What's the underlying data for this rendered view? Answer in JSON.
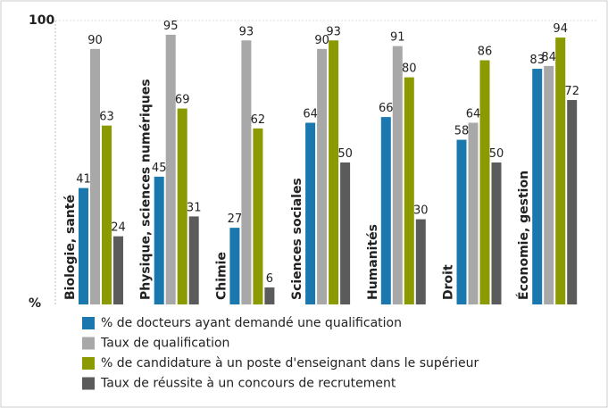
{
  "chart_data": {
    "type": "bar",
    "categories": [
      "Biologie, santé",
      "Physique, sciences numériques",
      "Chimie",
      "Sciences sociales",
      "Humanités",
      "Droit",
      "Économie, gestion"
    ],
    "series": [
      {
        "name": "% de docteurs ayant demandé une qualification",
        "color": "#1a78ae",
        "values": [
          41,
          45,
          27,
          64,
          66,
          58,
          83
        ]
      },
      {
        "name": "Taux de qualification",
        "color": "#a8a8a8",
        "values": [
          90,
          95,
          93,
          90,
          91,
          64,
          84
        ]
      },
      {
        "name": "% de candidature à un poste d'enseignant dans le supérieur",
        "color": "#8a9a00",
        "values": [
          63,
          69,
          62,
          93,
          80,
          86,
          94
        ]
      },
      {
        "name": "Taux de réussite à un concours de recrutement",
        "color": "#5b5b5b",
        "values": [
          24,
          31,
          6,
          50,
          30,
          50,
          72
        ]
      }
    ],
    "ylabel": "%",
    "ylim": [
      0,
      100
    ],
    "yticks": [
      100
    ],
    "grid": true
  }
}
